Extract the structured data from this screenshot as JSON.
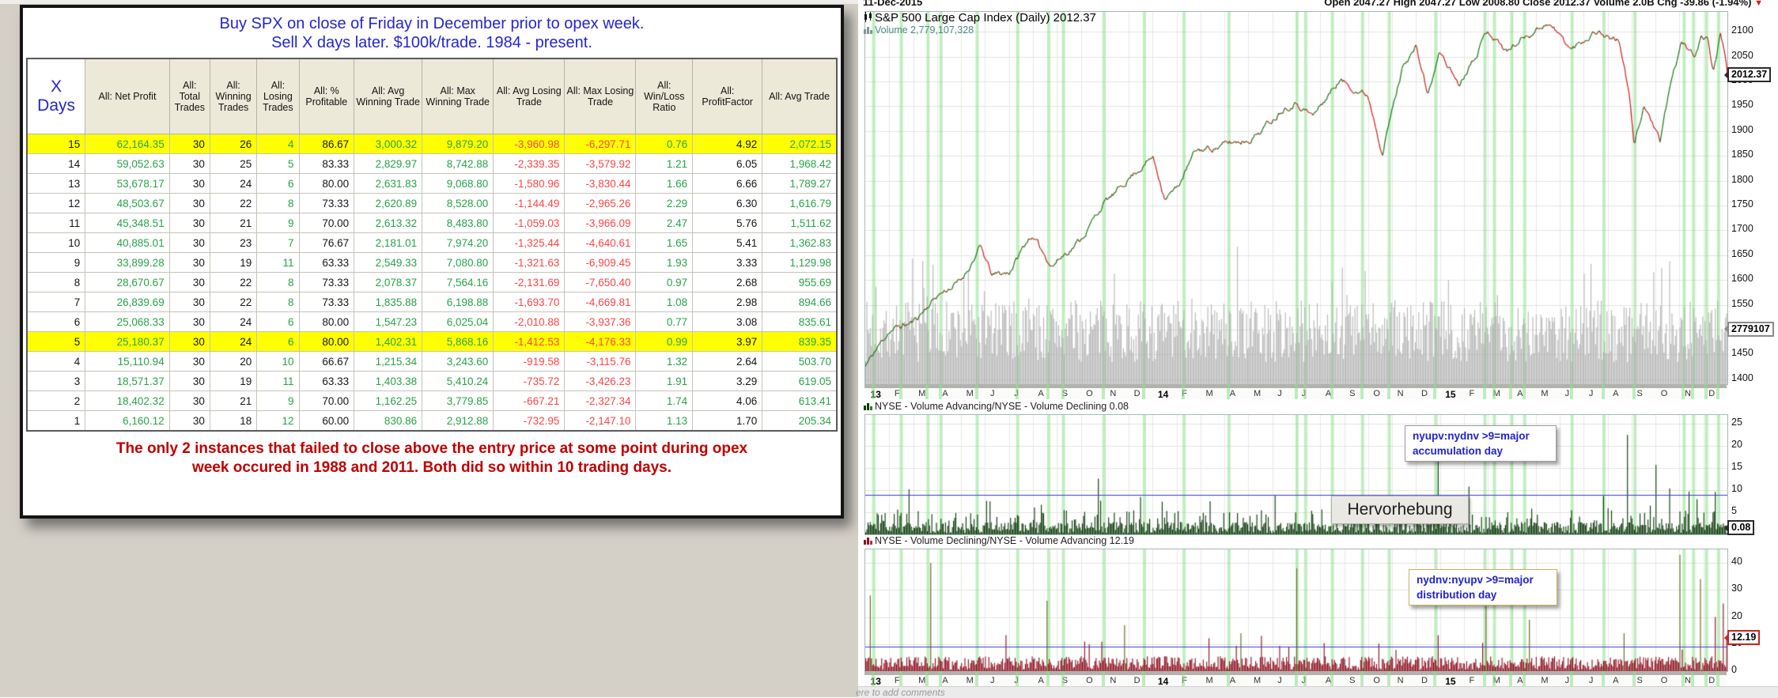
{
  "colors": {
    "title_blue": "#2525cd",
    "footnote_red": "#c00000",
    "highlight_yellow": "#ffff00",
    "gain_green": "#28a347",
    "loss_red": "#ff4444",
    "band_green": "#8ce08c",
    "price_up": "#1a7a1a",
    "price_down": "#cc2222",
    "volume_gray": "#b0b0b0",
    "bar_dark_green": "#0c3b0c",
    "bar_dark_red": "#8e1220",
    "olive_spike": "#6a671d",
    "threshold_blue": "#3a3acc"
  },
  "left_panel": {
    "title_line1": "Buy SPX on close of Friday in December prior to opex week.",
    "title_line2": "Sell X days later. $100k/trade. 1984 - present.",
    "footnote_line1": "The only 2 instances that failed to close above the entry price at some point during opex",
    "footnote_line2": "week occured in 1988 and 2011. Both did so within 10 trading days."
  },
  "chart": {
    "top_bar": {
      "date": "11-Dec-2015",
      "ohlc": "Open 2047.27  High 2047.27  Low 2008.80  Close 2012.37  Volume 2.0B  Chg -39.86 (-1.94%)",
      "arrow": "▼"
    },
    "title": "S&P 500 Large Cap Index (Daily) 2012.37",
    "volume_label": "Volume 2,779,107,328",
    "last_price_label": "2012.37",
    "volume_tag": "2779107",
    "highlight_label": "Hervorhebung",
    "comments_hint": "ere to add comments",
    "panel2": {
      "title": "NYSE - Volume Advancing/NYSE - Volume Declining 0.08",
      "last_label": "0.08",
      "annotation_line1": "nyupv:nydnv >9=major",
      "annotation_line2": "accumulation day"
    },
    "panel3": {
      "title": "NYSE - Volume Declining/NYSE - Volume Advancing 12.19",
      "last_label": "12.19",
      "annotation_line1": "nydnv:nyupv >9=major",
      "annotation_line2": "distribution day"
    }
  },
  "chart_data": [
    {
      "type": "table",
      "title": "Buy SPX on close of Friday in December prior to opex week. Sell X days later. $100k/trade. 1984 - present.",
      "columns": [
        "X Days",
        "All: Net Profit",
        "All: Total Trades",
        "All: Winning Trades",
        "All: Losing Trades",
        "All: % Profitable",
        "All: Avg Winning Trade",
        "All: Max Winning Trade",
        "All: Avg Losing Trade",
        "All: Max Losing Trade",
        "All: Win/Loss Ratio",
        "All: ProfitFactor",
        "All: Avg Trade"
      ],
      "column_colors": [
        "black",
        "green",
        "black",
        "black",
        "green",
        "black",
        "green",
        "green",
        "red",
        "red",
        "green",
        "black",
        "green"
      ],
      "highlight_rows": [
        0,
        10
      ],
      "rows": [
        [
          "15",
          "62,164.35",
          "30",
          "26",
          "4",
          "86.67",
          "3,000.32",
          "9,879.20",
          "-3,960.98",
          "-6,297.71",
          "0.76",
          "4.92",
          "2,072.15"
        ],
        [
          "14",
          "59,052.63",
          "30",
          "25",
          "5",
          "83.33",
          "2,829.97",
          "8,742.88",
          "-2,339.35",
          "-3,579.92",
          "1.21",
          "6.05",
          "1,968.42"
        ],
        [
          "13",
          "53,678.17",
          "30",
          "24",
          "6",
          "80.00",
          "2,631.83",
          "9,068.80",
          "-1,580.96",
          "-3,830.44",
          "1.66",
          "6.66",
          "1,789.27"
        ],
        [
          "12",
          "48,503.67",
          "30",
          "22",
          "8",
          "73.33",
          "2,620.89",
          "8,528.00",
          "-1,144.49",
          "-2,965.26",
          "2.29",
          "6.30",
          "1,616.79"
        ],
        [
          "11",
          "45,348.51",
          "30",
          "21",
          "9",
          "70.00",
          "2,613.32",
          "8,483.80",
          "-1,059.03",
          "-3,966.09",
          "2.47",
          "5.76",
          "1,511.62"
        ],
        [
          "10",
          "40,885.01",
          "30",
          "23",
          "7",
          "76.67",
          "2,181.01",
          "7,974.20",
          "-1,325.44",
          "-4,640.61",
          "1.65",
          "5.41",
          "1,362.83"
        ],
        [
          "9",
          "33,899.28",
          "30",
          "19",
          "11",
          "63.33",
          "2,549.33",
          "7,080.80",
          "-1,321.63",
          "-6,909.45",
          "1.93",
          "3.33",
          "1,129.98"
        ],
        [
          "8",
          "28,670.67",
          "30",
          "22",
          "8",
          "73.33",
          "2,078.37",
          "7,564.16",
          "-2,131.69",
          "-7,650.40",
          "0.97",
          "2.68",
          "955.69"
        ],
        [
          "7",
          "26,839.69",
          "30",
          "22",
          "8",
          "73.33",
          "1,835.88",
          "6,198.88",
          "-1,693.70",
          "-4,669.81",
          "1.08",
          "2.98",
          "894.66"
        ],
        [
          "6",
          "25,068.33",
          "30",
          "24",
          "6",
          "80.00",
          "1,547.23",
          "6,025.04",
          "-2,010.88",
          "-3,937.36",
          "0.77",
          "3.08",
          "835.61"
        ],
        [
          "5",
          "25,180.37",
          "30",
          "24",
          "6",
          "80.00",
          "1,402.31",
          "5,868.16",
          "-1,412.53",
          "-4,176.33",
          "0.99",
          "3.97",
          "839.35"
        ],
        [
          "4",
          "15,110.94",
          "30",
          "20",
          "10",
          "66.67",
          "1,215.34",
          "3,243.60",
          "-919.58",
          "-3,115.76",
          "1.32",
          "2.64",
          "503.70"
        ],
        [
          "3",
          "18,571.37",
          "30",
          "19",
          "11",
          "63.33",
          "1,403.38",
          "5,410.24",
          "-735.72",
          "-3,426.23",
          "1.91",
          "3.29",
          "619.05"
        ],
        [
          "2",
          "18,402.32",
          "30",
          "21",
          "9",
          "70.00",
          "1,162.25",
          "3,779.85",
          "-667.21",
          "-2,327.34",
          "1.74",
          "4.06",
          "613.41"
        ],
        [
          "1",
          "6,160.12",
          "30",
          "18",
          "12",
          "60.00",
          "830.86",
          "2,912.88",
          "-732.95",
          "-2,147.10",
          "1.13",
          "1.70",
          "205.34"
        ]
      ]
    },
    {
      "type": "line",
      "title": "S&P 500 Large Cap Index (Daily)",
      "last": 2012.37,
      "ylim": [
        1390,
        2140
      ],
      "axis_ticks": [
        2100,
        2050,
        2000,
        1950,
        1900,
        1850,
        1800,
        1750,
        1700,
        1650,
        1600,
        1550,
        1500,
        1450,
        1400
      ],
      "x_labels": [
        "13",
        "F",
        "M",
        "A",
        "M",
        "J",
        "J",
        "A",
        "S",
        "O",
        "N",
        "D",
        "14",
        "F",
        "M",
        "A",
        "M",
        "J",
        "J",
        "A",
        "S",
        "O",
        "N",
        "D",
        "15",
        "F",
        "M",
        "A",
        "M",
        "J",
        "J",
        "A",
        "S",
        "O",
        "N",
        "D"
      ],
      "keypoints": [
        [
          0,
          1426
        ],
        [
          1,
          1498
        ],
        [
          2,
          1515
        ],
        [
          3,
          1569
        ],
        [
          4,
          1598
        ],
        [
          4.8,
          1666
        ],
        [
          5.3,
          1608
        ],
        [
          6,
          1615
        ],
        [
          6.9,
          1690
        ],
        [
          7.8,
          1630
        ],
        [
          9,
          1682
        ],
        [
          10,
          1757
        ],
        [
          10.5,
          1775
        ],
        [
          11,
          1806
        ],
        [
          12,
          1848
        ],
        [
          12.5,
          1770
        ],
        [
          13,
          1783
        ],
        [
          13.8,
          1859
        ],
        [
          15,
          1872
        ],
        [
          16,
          1884
        ],
        [
          16.5,
          1900
        ],
        [
          17,
          1924
        ],
        [
          17.5,
          1950
        ],
        [
          18,
          1960
        ],
        [
          18.7,
          1930
        ],
        [
          19.8,
          2003
        ],
        [
          20.5,
          1985
        ],
        [
          21,
          1972
        ],
        [
          21.6,
          1862
        ],
        [
          22.5,
          2040
        ],
        [
          23,
          2068
        ],
        [
          23.5,
          1973
        ],
        [
          24,
          2059
        ],
        [
          24.8,
          1995
        ],
        [
          26,
          2105
        ],
        [
          26.8,
          2060
        ],
        [
          27.5,
          2090
        ],
        [
          28.5,
          2120
        ],
        [
          29.5,
          2063
        ],
        [
          30.5,
          2104
        ],
        [
          31.5,
          2080
        ],
        [
          31.9,
          1971
        ],
        [
          32.1,
          1868
        ],
        [
          32.5,
          1952
        ],
        [
          32.9,
          1915
        ],
        [
          33.2,
          1872
        ],
        [
          33.6,
          1990
        ],
        [
          34.1,
          2079
        ],
        [
          34.6,
          2050
        ],
        [
          34.9,
          2090
        ],
        [
          35.2,
          2082
        ],
        [
          35.4,
          2023
        ],
        [
          35.7,
          2092
        ],
        [
          35.9,
          2050
        ],
        [
          36,
          2012.37
        ]
      ],
      "signal_band_fractions": [
        0.008,
        0.04,
        0.071,
        0.086,
        0.128,
        0.175,
        0.211,
        0.228,
        0.275,
        0.322,
        0.368,
        0.42,
        0.499,
        0.509,
        0.54,
        0.575,
        0.606,
        0.66,
        0.717,
        0.728,
        0.748,
        0.763,
        0.818,
        0.855,
        0.891,
        0.948,
        0.959,
        0.974,
        0.988
      ]
    },
    {
      "type": "bar",
      "title": "NYSE - Volume Advancing/NYSE - Volume Declining",
      "last": 0.08,
      "ylim": [
        0,
        27
      ],
      "axis_ticks": [
        25,
        20,
        15,
        10,
        5
      ],
      "threshold": 9,
      "spikes": [
        [
          0.05,
          10.2
        ],
        [
          0.27,
          12.6
        ],
        [
          0.4,
          7.5
        ],
        [
          0.664,
          16.5
        ],
        [
          0.7,
          10.8
        ],
        [
          0.883,
          22.5
        ],
        [
          0.917,
          15.7
        ],
        [
          0.932,
          10.4
        ],
        [
          0.955,
          9.7
        ],
        [
          0.985,
          9.6
        ]
      ]
    },
    {
      "type": "bar",
      "title": "NYSE - Volume Declining/NYSE - Volume Advancing",
      "last": 12.19,
      "ylim": [
        0,
        45
      ],
      "axis_ticks": [
        40,
        30,
        20,
        10,
        0
      ],
      "threshold": 9,
      "spikes": [
        [
          0.005,
          28,
          "olive"
        ],
        [
          0.075,
          40,
          "olive"
        ],
        [
          0.21,
          26,
          "olive"
        ],
        [
          0.3,
          17,
          "olive"
        ],
        [
          0.435,
          14,
          "olive"
        ],
        [
          0.5,
          38,
          "olive"
        ],
        [
          0.72,
          24,
          "olive"
        ],
        [
          0.77,
          19,
          "olive"
        ],
        [
          0.88,
          14,
          "olive"
        ],
        [
          0.945,
          43,
          "olive"
        ],
        [
          0.968,
          34,
          "olive"
        ],
        [
          0.985,
          20,
          "red"
        ],
        [
          0.995,
          25,
          "red"
        ]
      ]
    }
  ]
}
